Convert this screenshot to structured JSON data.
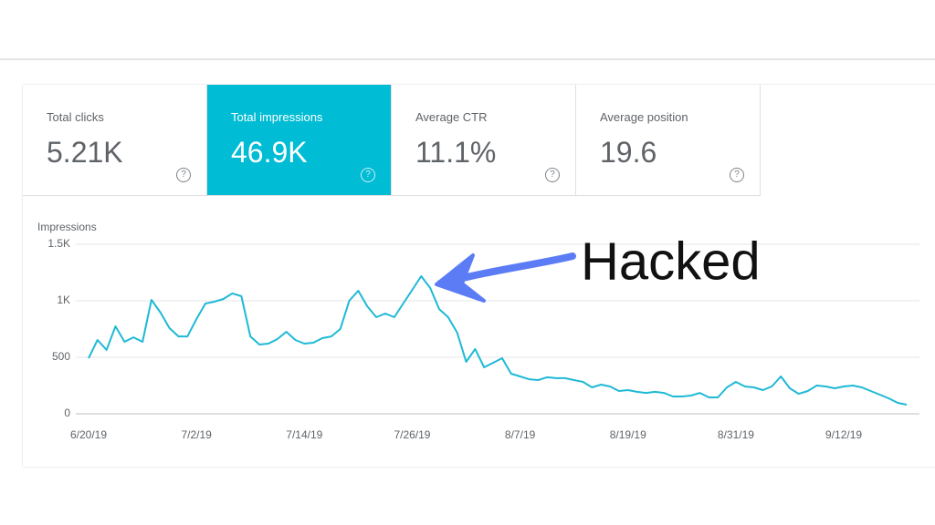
{
  "cards": [
    {
      "label": "Total clicks",
      "value": "5.21K",
      "selected": false
    },
    {
      "label": "Total impressions",
      "value": "46.9K",
      "selected": true
    },
    {
      "label": "Average CTR",
      "value": "11.1%",
      "selected": false
    },
    {
      "label": "Average position",
      "value": "19.6",
      "selected": false
    }
  ],
  "chart_data": {
    "type": "line",
    "ylabel": "Impressions",
    "annotation": "Hacked",
    "color": "#1fb9d6",
    "grid": true,
    "x": [
      "6/20/19",
      "6/21/19",
      "6/22/19",
      "6/23/19",
      "6/24/19",
      "6/25/19",
      "6/26/19",
      "6/27/19",
      "6/28/19",
      "6/29/19",
      "6/30/19",
      "7/1/19",
      "7/2/19",
      "7/3/19",
      "7/4/19",
      "7/5/19",
      "7/6/19",
      "7/7/19",
      "7/8/19",
      "7/9/19",
      "7/10/19",
      "7/11/19",
      "7/12/19",
      "7/13/19",
      "7/14/19",
      "7/15/19",
      "7/16/19",
      "7/17/19",
      "7/18/19",
      "7/19/19",
      "7/20/19",
      "7/21/19",
      "7/22/19",
      "7/23/19",
      "7/24/19",
      "7/25/19",
      "7/26/19",
      "7/27/19",
      "7/28/19",
      "7/29/19",
      "7/30/19",
      "7/31/19",
      "8/1/19",
      "8/2/19",
      "8/3/19",
      "8/4/19",
      "8/5/19",
      "8/6/19",
      "8/7/19",
      "8/8/19",
      "8/9/19",
      "8/10/19",
      "8/11/19",
      "8/12/19",
      "8/13/19",
      "8/14/19",
      "8/15/19",
      "8/16/19",
      "8/17/19",
      "8/18/19",
      "8/19/19",
      "8/20/19",
      "8/21/19",
      "8/22/19",
      "8/23/19",
      "8/24/19",
      "8/25/19",
      "8/26/19",
      "8/27/19",
      "8/28/19",
      "8/29/19",
      "8/30/19",
      "8/31/19",
      "9/1/19",
      "9/2/19",
      "9/3/19",
      "9/4/19",
      "9/5/19",
      "9/6/19",
      "9/7/19",
      "9/8/19",
      "9/9/19",
      "9/10/19",
      "9/11/19",
      "9/12/19",
      "9/13/19",
      "9/14/19",
      "9/15/19",
      "9/16/19",
      "9/17/19",
      "9/18/19",
      "9/19/19"
    ],
    "values": [
      492,
      653,
      565,
      774,
      637,
      677,
      637,
      1008,
      895,
      758,
      685,
      685,
      839,
      976,
      992,
      1016,
      1065,
      1040,
      685,
      613,
      621,
      661,
      726,
      653,
      621,
      629,
      669,
      685,
      750,
      1000,
      1089,
      952,
      855,
      887,
      855,
      976,
      1097,
      1218,
      1113,
      927,
      855,
      718,
      460,
      573,
      411,
      452,
      492,
      355,
      331,
      306,
      298,
      323,
      315,
      315,
      298,
      282,
      234,
      258,
      242,
      202,
      210,
      194,
      185,
      194,
      185,
      153,
      153,
      161,
      185,
      145,
      145,
      234,
      282,
      242,
      234,
      210,
      242,
      331,
      226,
      177,
      202,
      250,
      242,
      226,
      242,
      250,
      234,
      202,
      169,
      137,
      97,
      81
    ],
    "ylim": [
      0,
      1500
    ],
    "yticks": [
      0,
      500,
      {
        "value": 1000,
        "label": "1K"
      },
      {
        "value": 1500,
        "label": "1.5K"
      }
    ]
  }
}
